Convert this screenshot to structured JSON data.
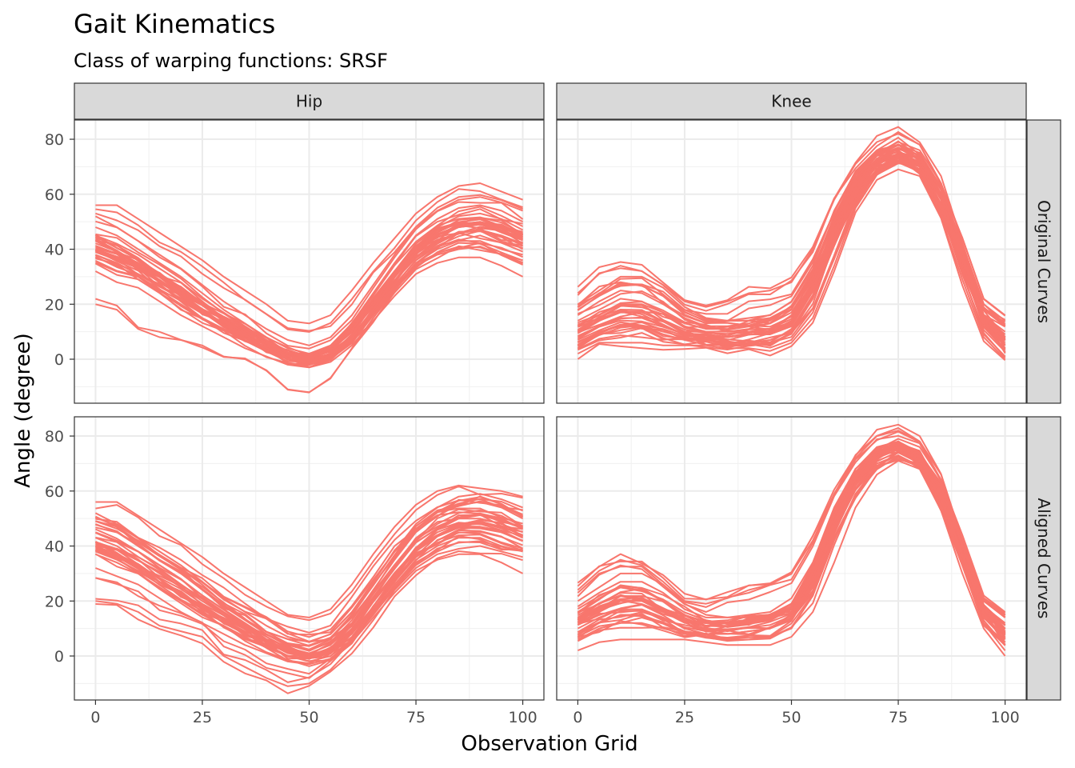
{
  "chart_data": {
    "type": "line",
    "title": "Gait Kinematics",
    "subtitle": "Class of warping functions: SRSF",
    "xlabel": "Observation Grid",
    "ylabel": "Angle (degree)",
    "xlim": [
      0,
      100
    ],
    "ylim": [
      -16,
      87
    ],
    "x_ticks": [
      0,
      25,
      50,
      75,
      100
    ],
    "y_ticks": [
      0,
      20,
      40,
      60,
      80
    ],
    "grid": true,
    "legend": "none",
    "line_color": "#F8766D",
    "n_curves_per_panel": 39,
    "column_facets": [
      "Hip",
      "Knee"
    ],
    "row_facets": [
      "Original Curves",
      "Aligned Curves"
    ],
    "x": [
      0,
      5,
      10,
      15,
      20,
      25,
      30,
      35,
      40,
      45,
      50,
      55,
      60,
      65,
      70,
      75,
      80,
      85,
      90,
      95,
      100
    ],
    "panels": [
      {
        "column": "Hip",
        "row": "Original Curves",
        "series": [
          {
            "values": [
              43,
              39,
              35,
              30,
              25,
              20,
              15,
              10,
              6,
              2,
              0,
              2,
              8,
              17,
              28,
              38,
              45,
              49,
              50,
              48,
              45
            ]
          },
          {
            "values": [
              20,
              18,
              11,
              8,
              7,
              5,
              1,
              0,
              -4,
              -11,
              -12,
              -7,
              4,
              15,
              25,
              34,
              38,
              40,
              41,
              38,
              36
            ]
          },
          {
            "values": [
              56,
              56,
              51,
              46,
              41,
              36,
              30,
              25,
              20,
              14,
              13,
              16,
              25,
              35,
              44,
              53,
              59,
              63,
              64,
              61,
              58
            ]
          },
          {
            "values": [
              37,
              34,
              30,
              25,
              20,
              15,
              11,
              7,
              3,
              0,
              -2,
              0,
              6,
              16,
              26,
              35,
              40,
              43,
              43,
              40,
              38
            ]
          },
          {
            "values": [
              48,
              45,
              40,
              35,
              30,
              24,
              18,
              13,
              8,
              4,
              2,
              5,
              13,
              24,
              35,
              45,
              51,
              55,
              56,
              54,
              50
            ]
          },
          {
            "values": [
              32,
              28,
              26,
              21,
              16,
              12,
              8,
              4,
              1,
              -2,
              -3,
              -1,
              5,
              14,
              23,
              31,
              35,
              37,
              37,
              34,
              30
            ]
          },
          {
            "values": [
              40,
              37,
              33,
              28,
              23,
              18,
              13,
              9,
              5,
              1,
              0,
              3,
              10,
              20,
              30,
              39,
              45,
              48,
              49,
              47,
              44
            ]
          },
          {
            "values": [
              45,
              42,
              38,
              33,
              28,
              22,
              17,
              12,
              7,
              3,
              1,
              4,
              11,
              21,
              32,
              42,
              48,
              52,
              53,
              51,
              47
            ]
          },
          {
            "values": [
              52,
              48,
              43,
              38,
              33,
              27,
              21,
              16,
              11,
              7,
              5,
              8,
              16,
              27,
              38,
              48,
              54,
              58,
              59,
              57,
              54
            ]
          },
          {
            "values": [
              38,
              35,
              31,
              27,
              22,
              17,
              12,
              8,
              4,
              0,
              -1,
              1,
              7,
              17,
              27,
              36,
              42,
              46,
              47,
              45,
              42
            ]
          }
        ]
      },
      {
        "column": "Knee",
        "row": "Original Curves",
        "series": [
          {
            "values": [
              14,
              18,
              22,
              21,
              17,
              12,
              10,
              10,
              11,
              13,
              18,
              32,
              52,
              67,
              75,
              76,
              70,
              55,
              35,
              16,
              9
            ]
          },
          {
            "values": [
              24,
              31,
              34,
              32,
              27,
              21,
              19,
              21,
              24,
              25,
              28,
              40,
              58,
              71,
              79,
              82,
              78,
              64,
              40,
              18,
              12
            ]
          },
          {
            "values": [
              2,
              6,
              6,
              6,
              5,
              5,
              5,
              4,
              4,
              3,
              6,
              15,
              34,
              55,
              67,
              72,
              68,
              52,
              29,
              8,
              0
            ]
          },
          {
            "values": [
              10,
              14,
              17,
              17,
              14,
              10,
              8,
              8,
              9,
              10,
              14,
              26,
              46,
              62,
              71,
              74,
              71,
              58,
              37,
              14,
              6
            ]
          },
          {
            "values": [
              18,
              23,
              27,
              27,
              23,
              17,
              14,
              14,
              15,
              16,
              21,
              34,
              54,
              68,
              76,
              78,
              74,
              60,
              38,
              18,
              12
            ]
          },
          {
            "values": [
              6,
              10,
              12,
              12,
              10,
              8,
              7,
              6,
              6,
              7,
              10,
              22,
              42,
              59,
              69,
              74,
              72,
              60,
              40,
              16,
              4
            ]
          },
          {
            "values": [
              20,
              25,
              30,
              30,
              26,
              19,
              15,
              14,
              14,
              15,
              19,
              30,
              48,
              64,
              73,
              77,
              74,
              62,
              42,
              20,
              14
            ]
          },
          {
            "values": [
              12,
              16,
              20,
              20,
              17,
              13,
              11,
              11,
              12,
              13,
              17,
              29,
              49,
              65,
              74,
              77,
              73,
              59,
              38,
              16,
              8
            ]
          },
          {
            "values": [
              16,
              21,
              25,
              24,
              20,
              15,
              12,
              12,
              13,
              15,
              19,
              31,
              51,
              66,
              75,
              79,
              76,
              64,
              44,
              22,
              16
            ]
          },
          {
            "values": [
              8,
              12,
              15,
              15,
              12,
              9,
              8,
              8,
              9,
              10,
              13,
              25,
              45,
              61,
              70,
              73,
              69,
              55,
              34,
              12,
              5
            ]
          }
        ]
      },
      {
        "column": "Hip",
        "row": "Aligned Curves",
        "series": [
          {
            "values": [
              43,
              40,
              35,
              30,
              25,
              20,
              15,
              10,
              6,
              2,
              0,
              2,
              8,
              18,
              29,
              39,
              46,
              50,
              50,
              48,
              45
            ]
          },
          {
            "values": [
              20,
              19,
              16,
              11,
              9,
              7,
              0,
              -4,
              -8,
              -11,
              -10,
              -5,
              3,
              13,
              24,
              32,
              37,
              39,
              40,
              38,
              36
            ]
          },
          {
            "values": [
              56,
              56,
              51,
              46,
              41,
              36,
              30,
              25,
              20,
              15,
              14,
              17,
              26,
              37,
              47,
              55,
              60,
              62,
              61,
              60,
              58
            ]
          },
          {
            "values": [
              37,
              34,
              30,
              25,
              20,
              15,
              11,
              7,
              3,
              0,
              -2,
              0,
              6,
              16,
              26,
              35,
              40,
              43,
              43,
              40,
              38
            ]
          },
          {
            "values": [
              48,
              45,
              40,
              35,
              30,
              24,
              18,
              13,
              8,
              4,
              2,
              5,
              13,
              24,
              35,
              45,
              51,
              55,
              56,
              54,
              50
            ]
          },
          {
            "values": [
              32,
              29,
              26,
              21,
              16,
              12,
              8,
              4,
              1,
              -2,
              -3,
              -1,
              5,
              14,
              23,
              31,
              35,
              37,
              37,
              34,
              30
            ]
          },
          {
            "values": [
              40,
              37,
              33,
              28,
              23,
              18,
              13,
              9,
              5,
              1,
              0,
              3,
              10,
              20,
              30,
              39,
              45,
              48,
              49,
              47,
              44
            ]
          },
          {
            "values": [
              45,
              42,
              38,
              33,
              28,
              22,
              17,
              12,
              7,
              3,
              1,
              4,
              11,
              21,
              32,
              42,
              48,
              52,
              53,
              51,
              47
            ]
          },
          {
            "values": [
              52,
              48,
              43,
              38,
              33,
              27,
              21,
              16,
              11,
              7,
              5,
              8,
              16,
              27,
              38,
              48,
              54,
              58,
              59,
              57,
              54
            ]
          },
          {
            "values": [
              38,
              35,
              31,
              27,
              22,
              17,
              12,
              8,
              4,
              0,
              -1,
              1,
              7,
              17,
              27,
              36,
              42,
              46,
              47,
              45,
              42
            ]
          }
        ]
      },
      {
        "column": "Knee",
        "row": "Aligned Curves",
        "series": [
          {
            "values": [
              14,
              19,
              22,
              21,
              17,
              13,
              11,
              11,
              12,
              13,
              18,
              32,
              52,
              67,
              75,
              76,
              70,
              56,
              36,
              17,
              9
            ]
          },
          {
            "values": [
              24,
              31,
              35,
              33,
              27,
              20,
              19,
              21,
              24,
              26,
              30,
              42,
              59,
              72,
              80,
              82,
              78,
              64,
              40,
              20,
              14
            ]
          },
          {
            "values": [
              2,
              5,
              6,
              6,
              6,
              6,
              5,
              4,
              4,
              4,
              7,
              16,
              34,
              54,
              66,
              71,
              68,
              53,
              30,
              10,
              0
            ]
          },
          {
            "values": [
              10,
              14,
              17,
              17,
              14,
              10,
              8,
              8,
              9,
              10,
              14,
              26,
              46,
              62,
              71,
              74,
              71,
              58,
              37,
              14,
              6
            ]
          },
          {
            "values": [
              18,
              23,
              27,
              27,
              23,
              17,
              14,
              14,
              15,
              16,
              21,
              34,
              54,
              68,
              76,
              78,
              74,
              60,
              38,
              18,
              12
            ]
          },
          {
            "values": [
              6,
              10,
              12,
              12,
              10,
              8,
              7,
              6,
              6,
              7,
              10,
              22,
              42,
              59,
              69,
              74,
              72,
              60,
              40,
              16,
              4
            ]
          },
          {
            "values": [
              20,
              25,
              30,
              30,
              26,
              19,
              15,
              14,
              14,
              15,
              19,
              30,
              48,
              64,
              73,
              77,
              74,
              62,
              42,
              20,
              14
            ]
          },
          {
            "values": [
              12,
              16,
              20,
              20,
              17,
              13,
              11,
              11,
              12,
              13,
              17,
              29,
              49,
              65,
              74,
              77,
              73,
              59,
              38,
              16,
              8
            ]
          },
          {
            "values": [
              16,
              21,
              25,
              24,
              20,
              15,
              12,
              12,
              13,
              15,
              19,
              31,
              51,
              66,
              75,
              79,
              76,
              64,
              44,
              22,
              16
            ]
          },
          {
            "values": [
              8,
              12,
              15,
              15,
              12,
              9,
              8,
              8,
              9,
              10,
              13,
              25,
              45,
              61,
              70,
              73,
              69,
              55,
              34,
              12,
              5
            ]
          }
        ]
      }
    ]
  }
}
